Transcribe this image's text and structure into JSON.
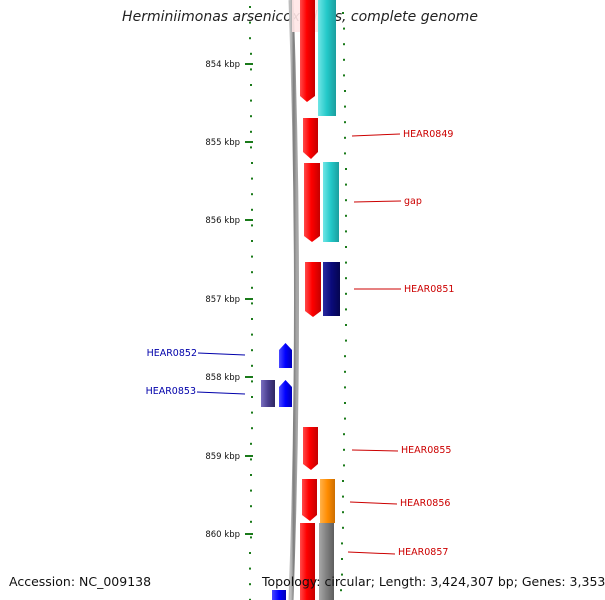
{
  "title": "Herminiimonas arsenicoxydans, complete genome",
  "accession": "Accession: NC_009138",
  "topology": "Topology: circular; Length: 3,424,307 bp; Genes: 3,353",
  "colors": {
    "backbone": "#8c8c8c",
    "tick": "#1a7a1a",
    "forward_cds": "#ff0000",
    "reverse_cds": "#0000ff",
    "reverse_other": "#4a3f8f",
    "cyan_feature": "#20c4c4",
    "navy_feature": "#0a0a7a",
    "orange_feature": "#ff8c00",
    "gray_feature": "#808080",
    "label_forward": "#cc0000",
    "label_reverse": "#0000aa"
  },
  "kbp_ticks": [
    "854 kbp",
    "855 kbp",
    "856 kbp",
    "857 kbp",
    "858 kbp",
    "859 kbp",
    "860 kbp"
  ],
  "gene_labels": {
    "right": [
      "HEAR0849",
      "gap",
      "HEAR0851",
      "HEAR0855",
      "HEAR0856",
      "HEAR0857"
    ],
    "left": [
      "HEAR0852",
      "HEAR0853"
    ]
  }
}
